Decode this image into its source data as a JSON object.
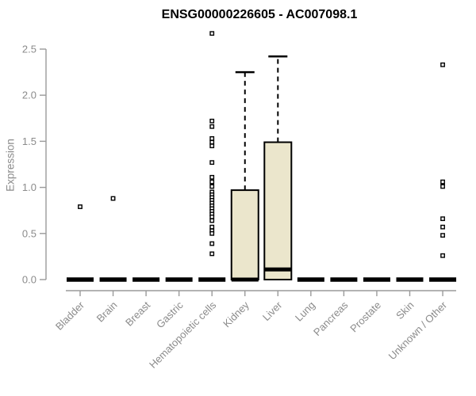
{
  "chart_data": {
    "type": "boxplot",
    "title": "ENSG00000226605 - AC007098.1",
    "ylabel": "Expression",
    "xlabel": "",
    "ylim": [
      0,
      2.7
    ],
    "yticks": [
      0,
      0.5,
      1,
      1.5,
      2,
      2.5
    ],
    "grid": false,
    "legend": "none",
    "categories": [
      "Bladder",
      "Brain",
      "Breast",
      "Gastric",
      "Hematopoietic cells",
      "Kidney",
      "Liver",
      "Lung",
      "Pancreas",
      "Prostate",
      "Skin",
      "Unknown / Other"
    ],
    "boxes": [
      {
        "category": "Bladder",
        "q1": 0,
        "median": 0,
        "q3": 0,
        "whisker_low": 0,
        "whisker_high": 0,
        "outliers": [
          0.79
        ]
      },
      {
        "category": "Brain",
        "q1": 0,
        "median": 0,
        "q3": 0,
        "whisker_low": 0,
        "whisker_high": 0,
        "outliers": [
          0.88
        ]
      },
      {
        "category": "Breast",
        "q1": 0,
        "median": 0,
        "q3": 0,
        "whisker_low": 0,
        "whisker_high": 0,
        "outliers": []
      },
      {
        "category": "Gastric",
        "q1": 0,
        "median": 0,
        "q3": 0,
        "whisker_low": 0,
        "whisker_high": 0,
        "outliers": []
      },
      {
        "category": "Hematopoietic cells",
        "q1": 0,
        "median": 0,
        "q3": 0,
        "whisker_low": 0,
        "whisker_high": 0,
        "outliers": [
          2.67,
          1.72,
          1.66,
          1.53,
          1.49,
          1.45,
          1.27,
          1.11,
          1.06,
          1.01,
          0.95,
          0.92,
          0.89,
          0.86,
          0.83,
          0.8,
          0.77,
          0.74,
          0.71,
          0.68,
          0.64,
          0.57,
          0.53,
          0.5,
          0.39,
          0.28
        ]
      },
      {
        "category": "Kidney",
        "q1": 0,
        "median": 0,
        "q3": 0.97,
        "whisker_low": 0,
        "whisker_high": 2.25,
        "outliers": []
      },
      {
        "category": "Liver",
        "q1": 0,
        "median": 0.11,
        "q3": 1.49,
        "whisker_low": 0,
        "whisker_high": 2.42,
        "outliers": []
      },
      {
        "category": "Lung",
        "q1": 0,
        "median": 0,
        "q3": 0,
        "whisker_low": 0,
        "whisker_high": 0,
        "outliers": []
      },
      {
        "category": "Pancreas",
        "q1": 0,
        "median": 0,
        "q3": 0,
        "whisker_low": 0,
        "whisker_high": 0,
        "outliers": []
      },
      {
        "category": "Prostate",
        "q1": 0,
        "median": 0,
        "q3": 0,
        "whisker_low": 0,
        "whisker_high": 0,
        "outliers": []
      },
      {
        "category": "Skin",
        "q1": 0,
        "median": 0,
        "q3": 0,
        "whisker_low": 0,
        "whisker_high": 0,
        "outliers": []
      },
      {
        "category": "Unknown / Other",
        "q1": 0,
        "median": 0,
        "q3": 0,
        "whisker_low": 0,
        "whisker_high": 0,
        "outliers": [
          2.33,
          1.06,
          1.01,
          0.66,
          0.57,
          0.48,
          0.26
        ]
      }
    ],
    "colors": {
      "box_fill": "#ebe6cc",
      "box_stroke": "#000000",
      "median": "#000000",
      "whisker": "#000000",
      "outlier_stroke": "#000000",
      "outlier_fill": "#ffffff",
      "axis": "#9a9a9a",
      "tick_label": "#8b8b8b",
      "title": "#000000",
      "background": "#ffffff"
    }
  }
}
